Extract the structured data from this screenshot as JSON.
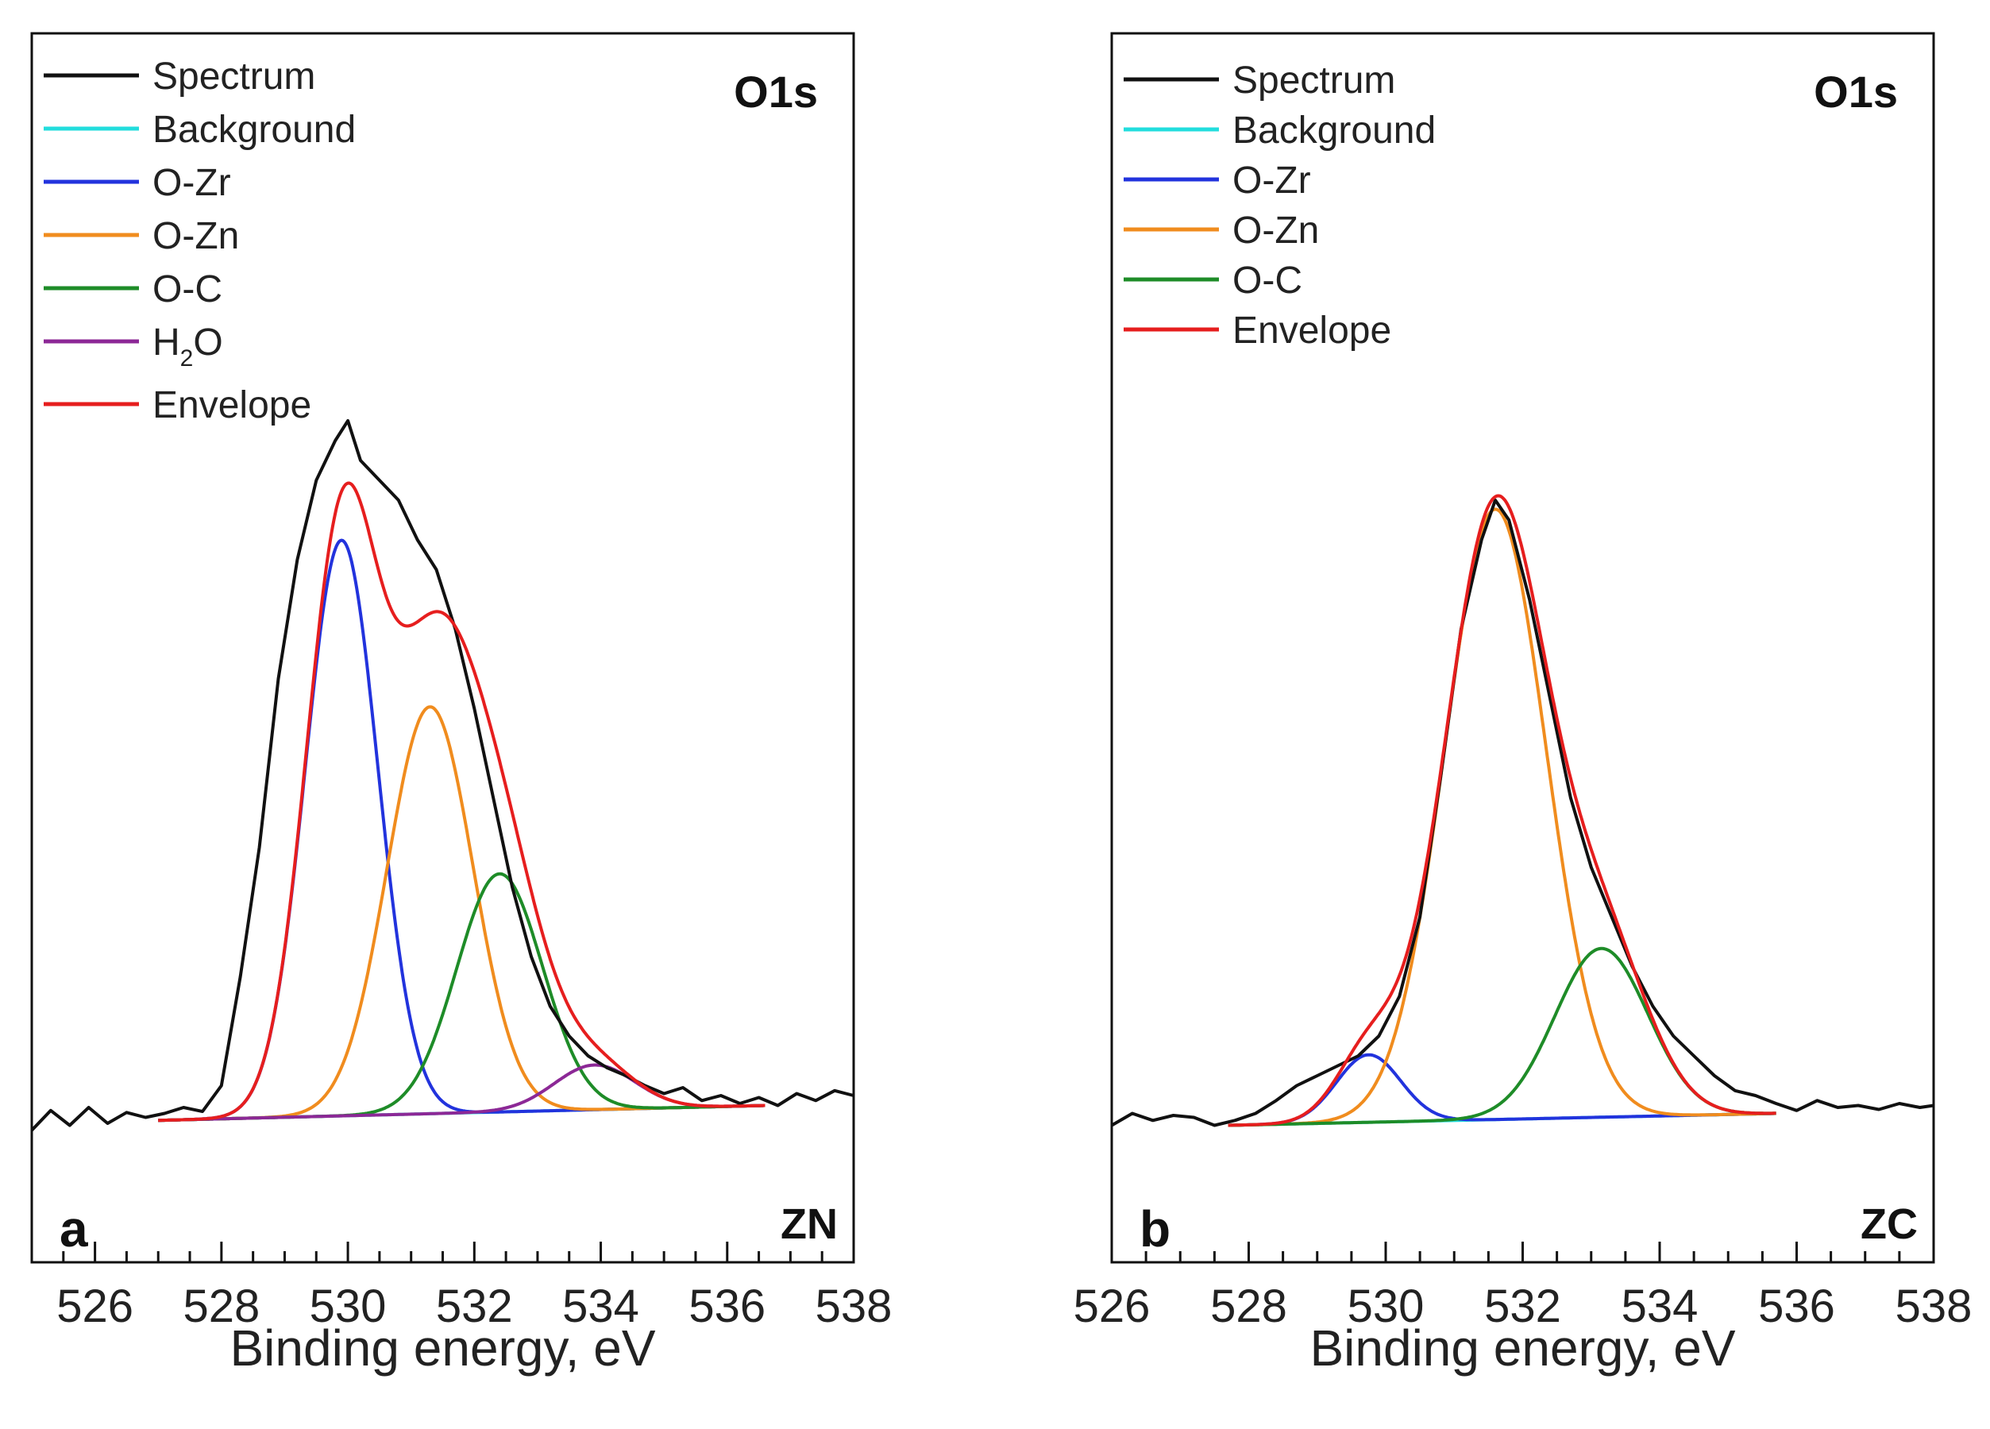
{
  "figure": {
    "colors": {
      "spectrum": "#111111",
      "background": "#22dddd",
      "O-Zr": "#2233dd",
      "O-Zn": "#f08c1e",
      "O-C": "#1e8c28",
      "H2O": "#8c2896",
      "envelope": "#e61e1e"
    }
  },
  "chart_data": [
    {
      "type": "line",
      "title": "O1s",
      "panel_label": "a",
      "sample_label": "ZN",
      "xlabel": "Binding energy, eV",
      "ylabel": "",
      "xlim": [
        525,
        538
      ],
      "ylim": [
        0,
        1
      ],
      "xticks": [
        526,
        528,
        530,
        532,
        534,
        536,
        538
      ],
      "yticks_shown": false,
      "legend_placement": "top-left",
      "legend": [
        {
          "key": "spectrum",
          "label": "Spectrum"
        },
        {
          "key": "background",
          "label": "Background"
        },
        {
          "key": "O-Zr",
          "label": "O-Zr"
        },
        {
          "key": "O-Zn",
          "label": "O-Zn"
        },
        {
          "key": "O-C",
          "label": "O-C"
        },
        {
          "key": "H2O",
          "label": "H",
          "sub": "2",
          "label_after": "O"
        },
        {
          "key": "envelope",
          "label": "Envelope"
        }
      ],
      "background_line": {
        "x_start": 527.0,
        "x_end": 536.6,
        "y_start": 0.055,
        "y_end": 0.07
      },
      "components": [
        {
          "name": "O-Zr",
          "color_key": "O-Zr",
          "center": 529.9,
          "fwhm": 1.35,
          "height": 0.58
        },
        {
          "name": "O-Zn",
          "color_key": "O-Zn",
          "center": 531.3,
          "fwhm": 1.6,
          "height": 0.41
        },
        {
          "name": "O-C",
          "color_key": "O-C",
          "center": 532.4,
          "fwhm": 1.6,
          "height": 0.24
        },
        {
          "name": "H2O",
          "color_key": "H2O",
          "center": 533.9,
          "fwhm": 1.5,
          "height": 0.045
        }
      ],
      "spectrum": {
        "x": [
          525.0,
          525.3,
          525.6,
          525.9,
          526.2,
          526.5,
          526.8,
          527.1,
          527.4,
          527.7,
          528.0,
          528.3,
          528.6,
          528.9,
          529.2,
          529.5,
          529.8,
          530.0,
          530.2,
          530.5,
          530.8,
          531.1,
          531.4,
          531.7,
          532.0,
          532.3,
          532.6,
          532.9,
          533.2,
          533.5,
          533.8,
          534.1,
          534.4,
          534.7,
          535.0,
          535.3,
          535.6,
          535.9,
          536.2,
          536.5,
          536.8,
          537.1,
          537.4,
          537.7,
          538.0
        ],
        "y": [
          0.045,
          0.065,
          0.05,
          0.068,
          0.052,
          0.063,
          0.058,
          0.062,
          0.068,
          0.064,
          0.09,
          0.2,
          0.33,
          0.5,
          0.62,
          0.7,
          0.74,
          0.76,
          0.72,
          0.7,
          0.68,
          0.64,
          0.61,
          0.55,
          0.47,
          0.38,
          0.29,
          0.22,
          0.17,
          0.14,
          0.12,
          0.108,
          0.1,
          0.09,
          0.082,
          0.088,
          0.075,
          0.08,
          0.072,
          0.078,
          0.07,
          0.082,
          0.075,
          0.085,
          0.08
        ]
      }
    },
    {
      "type": "line",
      "title": "O1s",
      "panel_label": "b",
      "sample_label": "ZC",
      "xlabel": "Binding energy, eV",
      "ylabel": "",
      "xlim": [
        526,
        538
      ],
      "ylim": [
        0,
        1
      ],
      "xticks": [
        526,
        528,
        530,
        532,
        534,
        536,
        538
      ],
      "yticks_shown": false,
      "legend_placement": "top-left",
      "legend": [
        {
          "key": "spectrum",
          "label": "Spectrum"
        },
        {
          "key": "background",
          "label": "Background"
        },
        {
          "key": "O-Zr",
          "label": "O-Zr"
        },
        {
          "key": "O-Zn",
          "label": "O-Zn"
        },
        {
          "key": "O-C",
          "label": "O-C"
        },
        {
          "key": "envelope",
          "label": "Envelope"
        }
      ],
      "background_line": {
        "x_start": 527.7,
        "x_end": 535.7,
        "y_start": 0.05,
        "y_end": 0.062
      },
      "components": [
        {
          "name": "O-Zr",
          "color_key": "O-Zr",
          "center": 529.75,
          "fwhm": 1.1,
          "height": 0.068
        },
        {
          "name": "O-Zn",
          "color_key": "O-Zn",
          "center": 531.6,
          "fwhm": 1.75,
          "height": 0.615
        },
        {
          "name": "O-C",
          "color_key": "O-C",
          "center": 533.15,
          "fwhm": 1.6,
          "height": 0.17
        }
      ],
      "spectrum": {
        "x": [
          526.0,
          526.3,
          526.6,
          526.9,
          527.2,
          527.5,
          527.8,
          528.1,
          528.4,
          528.7,
          529.0,
          529.3,
          529.6,
          529.9,
          530.2,
          530.5,
          530.8,
          531.1,
          531.4,
          531.6,
          531.8,
          532.1,
          532.4,
          532.7,
          533.0,
          533.3,
          533.6,
          533.9,
          534.2,
          534.5,
          534.8,
          535.1,
          535.4,
          535.7,
          536.0,
          536.3,
          536.6,
          536.9,
          537.2,
          537.5,
          537.8,
          538.0
        ],
        "y": [
          0.05,
          0.062,
          0.055,
          0.06,
          0.058,
          0.05,
          0.055,
          0.062,
          0.075,
          0.09,
          0.1,
          0.11,
          0.12,
          0.14,
          0.18,
          0.26,
          0.4,
          0.55,
          0.64,
          0.68,
          0.66,
          0.58,
          0.48,
          0.38,
          0.31,
          0.26,
          0.21,
          0.17,
          0.14,
          0.12,
          0.1,
          0.085,
          0.08,
          0.072,
          0.065,
          0.075,
          0.068,
          0.07,
          0.066,
          0.072,
          0.068,
          0.07
        ]
      }
    }
  ]
}
